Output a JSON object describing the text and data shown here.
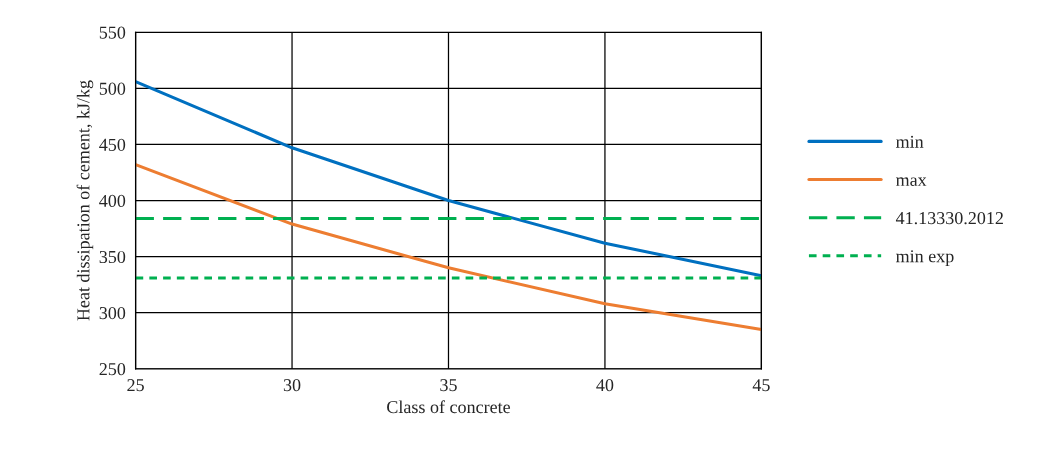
{
  "chart_data": {
    "type": "line",
    "xlabel": "Class of concrete",
    "ylabel": "Heat dissipation of cement, kJ/kg",
    "x": [
      25,
      30,
      35,
      40,
      45
    ],
    "series": [
      {
        "name": "min",
        "color": "#0070c0",
        "values": [
          506,
          447,
          400,
          362,
          333
        ],
        "line_style": "solid"
      },
      {
        "name": "max",
        "color": "#ed7d31",
        "values": [
          432,
          379,
          340,
          308,
          285
        ],
        "line_style": "solid"
      },
      {
        "name": "41.13330.2012",
        "color": "#00b050",
        "values": [
          384,
          384,
          384,
          384,
          384
        ],
        "line_style": "dashed"
      },
      {
        "name": "min exp",
        "color": "#00b050",
        "values": [
          331,
          331,
          331,
          331,
          331
        ],
        "line_style": "dotted"
      }
    ],
    "xlim": [
      25,
      45
    ],
    "xticks": [
      25,
      30,
      35,
      40,
      45
    ],
    "ylim": [
      250,
      550
    ],
    "yticks": [
      250,
      300,
      350,
      400,
      450,
      500,
      550
    ],
    "grid": true,
    "legend": "right",
    "marker": "none"
  }
}
